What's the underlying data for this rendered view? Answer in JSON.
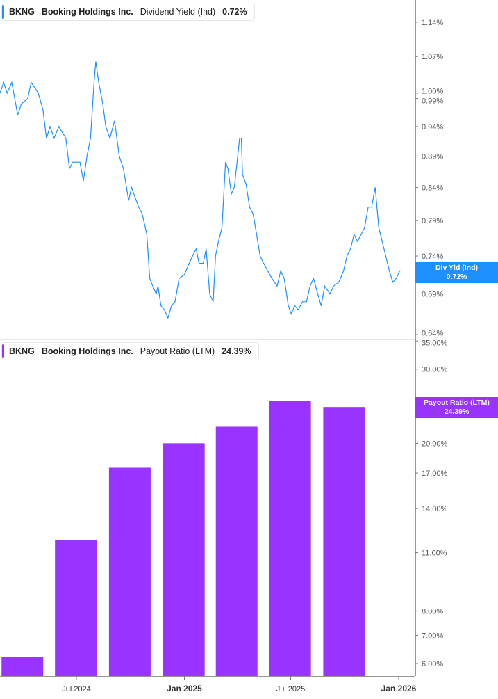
{
  "panels": {
    "top": {
      "ticker": "BKNG",
      "company": "Booking Holdings Inc.",
      "metric": "Dividend Yield (Ind)",
      "value": "0.72%",
      "flag_label": "Div Yld (Ind)",
      "flag_value": "0.72%",
      "color": "#1E90FF"
    },
    "bottom": {
      "ticker": "BKNG",
      "company": "Booking Holdings Inc.",
      "metric": "Payout Ratio (LTM)",
      "value": "24.39%",
      "flag_label": "Payout Ratio (LTM)",
      "flag_value": "24.39%",
      "color": "#9933FF"
    }
  },
  "chart_data": [
    {
      "type": "line",
      "series": [
        {
          "name": "Dividend Yield (Ind)",
          "color": "#1E90FF",
          "x": [
            "2024-02-22",
            "2024-02-28",
            "2024-03-05",
            "2024-03-13",
            "2024-03-23",
            "2024-03-29",
            "2024-04-09",
            "2024-04-15",
            "2024-04-21",
            "2024-04-27",
            "2024-05-05",
            "2024-05-11",
            "2024-05-17",
            "2024-05-24",
            "2024-06-01",
            "2024-06-13",
            "2024-06-19",
            "2024-06-25",
            "2024-07-01",
            "2024-07-07",
            "2024-07-13",
            "2024-07-19",
            "2024-07-25",
            "2024-07-31",
            "2024-08-03",
            "2024-08-08",
            "2024-08-15",
            "2024-08-20",
            "2024-08-27",
            "2024-09-04",
            "2024-09-12",
            "2024-09-19",
            "2024-09-28",
            "2024-10-03",
            "2024-10-15",
            "2024-10-21",
            "2024-10-29",
            "2024-11-03",
            "2024-11-08",
            "2024-11-14",
            "2024-11-17",
            "2024-11-22",
            "2024-11-28",
            "2024-12-04",
            "2024-12-10",
            "2024-12-16",
            "2024-12-23",
            "2025-01-01",
            "2025-01-09",
            "2025-01-15",
            "2025-01-21",
            "2025-01-26",
            "2025-02-02",
            "2025-02-07",
            "2025-02-13",
            "2025-02-19",
            "2025-02-23",
            "2025-02-28",
            "2025-03-06",
            "2025-03-12",
            "2025-03-16",
            "2025-03-22",
            "2025-03-27",
            "2025-04-05",
            "2025-04-08",
            "2025-04-10",
            "2025-04-16",
            "2025-04-22",
            "2025-04-28",
            "2025-05-04",
            "2025-05-10",
            "2025-05-16",
            "2025-05-23",
            "2025-05-30",
            "2025-06-08",
            "2025-06-14",
            "2025-06-20",
            "2025-06-27",
            "2025-07-02",
            "2025-07-08",
            "2025-07-14",
            "2025-07-21",
            "2025-07-28",
            "2025-08-03",
            "2025-08-09",
            "2025-08-16",
            "2025-08-22",
            "2025-08-28",
            "2025-09-06",
            "2025-09-12",
            "2025-09-21",
            "2025-09-29",
            "2025-10-05",
            "2025-10-11",
            "2025-10-17",
            "2025-10-23",
            "2025-10-29",
            "2025-11-04",
            "2025-11-10",
            "2025-11-16",
            "2025-11-22",
            "2025-11-28",
            "2025-12-04",
            "2025-12-10",
            "2025-12-16",
            "2025-12-22",
            "2025-12-28",
            "2026-01-03",
            "2026-01-06"
          ],
          "values": [
            1.0,
            1.02,
            1.0,
            1.02,
            0.96,
            0.98,
            0.99,
            1.02,
            1.01,
            1.0,
            0.97,
            0.92,
            0.94,
            0.92,
            0.94,
            0.92,
            0.87,
            0.88,
            0.88,
            0.88,
            0.85,
            0.89,
            0.92,
            1.02,
            1.06,
            1.02,
            0.98,
            0.94,
            0.92,
            0.95,
            0.89,
            0.87,
            0.82,
            0.84,
            0.81,
            0.8,
            0.77,
            0.71,
            0.7,
            0.69,
            0.7,
            0.675,
            0.67,
            0.66,
            0.675,
            0.68,
            0.71,
            0.715,
            0.73,
            0.74,
            0.75,
            0.73,
            0.73,
            0.75,
            0.69,
            0.68,
            0.74,
            0.76,
            0.78,
            0.88,
            0.87,
            0.83,
            0.84,
            0.92,
            0.92,
            0.86,
            0.845,
            0.81,
            0.8,
            0.77,
            0.74,
            0.73,
            0.72,
            0.71,
            0.7,
            0.72,
            0.71,
            0.675,
            0.665,
            0.675,
            0.67,
            0.68,
            0.68,
            0.7,
            0.71,
            0.69,
            0.675,
            0.7,
            0.69,
            0.7,
            0.705,
            0.72,
            0.74,
            0.75,
            0.77,
            0.76,
            0.77,
            0.78,
            0.81,
            0.81,
            0.84,
            0.78,
            0.76,
            0.74,
            0.72,
            0.705,
            0.71,
            0.72,
            0.72
          ]
        }
      ],
      "y_scale": "log",
      "ylim": [
        0.64,
        1.18
      ],
      "y_ticks": [
        "1.14%",
        "1.07%",
        "1.00%",
        "0.99%",
        "0.94%",
        "0.89%",
        "0.84%",
        "0.79%",
        "0.74%",
        "0.69%",
        "0.64%"
      ],
      "y_tick_values": [
        1.14,
        1.07,
        1.0,
        0.99,
        0.94,
        0.89,
        0.84,
        0.79,
        0.74,
        0.69,
        0.64
      ],
      "grid": false,
      "axis_position": "right"
    },
    {
      "type": "bar",
      "series": [
        {
          "name": "Payout Ratio (LTM)",
          "color": "#9933FF",
          "x": [
            "2024-03-31",
            "2024-06-30",
            "2024-09-30",
            "2024-12-31",
            "2025-03-31",
            "2025-06-30",
            "2025-09-30"
          ],
          "values": [
            6.23,
            11.8,
            17.5,
            20.0,
            21.9,
            25.2,
            24.39
          ]
        }
      ],
      "y_scale": "log",
      "ylim": [
        5.8,
        35.5
      ],
      "y_ticks": [
        "35.00%",
        "30.00%",
        "20.00%",
        "17.00%",
        "14.00%",
        "11.00%",
        "8.00%",
        "7.00%",
        "6.00%"
      ],
      "y_tick_values": [
        35,
        30,
        20,
        17,
        14,
        11,
        8,
        7,
        6
      ],
      "grid": false,
      "axis_position": "right"
    }
  ],
  "x_axis": {
    "ticks": [
      {
        "label": "Jul 2024",
        "date": "2024-07-01",
        "bold": false
      },
      {
        "label": "Jan 2025",
        "date": "2025-01-01",
        "bold": true
      },
      {
        "label": "Jul 2025",
        "date": "2025-07-01",
        "bold": false
      },
      {
        "label": "Jan 2026",
        "date": "2026-01-01",
        "bold": true
      }
    ]
  }
}
